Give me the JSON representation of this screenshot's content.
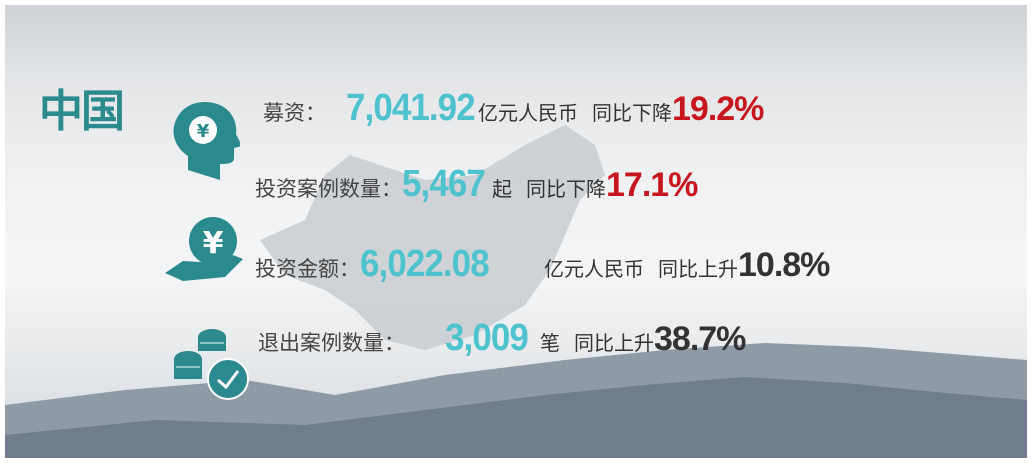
{
  "title": {
    "text": "中国",
    "box_char": "国"
  },
  "colors": {
    "teal": "#2a8a8e",
    "number": "#4fc2cf",
    "decrease": "#c8161e",
    "increase": "#333333"
  },
  "rows": [
    {
      "icon": "head-yuan-icon",
      "label": "募资：",
      "value": "7,041.92",
      "unit": "亿元人民币",
      "yoy_label": "同比下降",
      "yoy": "19.2%",
      "trend": "down"
    },
    {
      "icon": "",
      "label": "投资案例数量：",
      "value": "5,467",
      "unit": "起",
      "yoy_label": "同比下降",
      "yoy": "17.1%",
      "trend": "down"
    },
    {
      "icon": "hand-yuan-icon",
      "label": "投资金额：",
      "value": "6,022.08",
      "unit": "亿元人民币",
      "yoy_label": "同比上升",
      "yoy": "10.8%",
      "trend": "up"
    },
    {
      "icon": "coins-check-icon",
      "label": "退出案例数量：",
      "value": "3,009",
      "unit": "笔",
      "yoy_label": "同比上升",
      "yoy": "38.7%",
      "trend": "up"
    }
  ]
}
